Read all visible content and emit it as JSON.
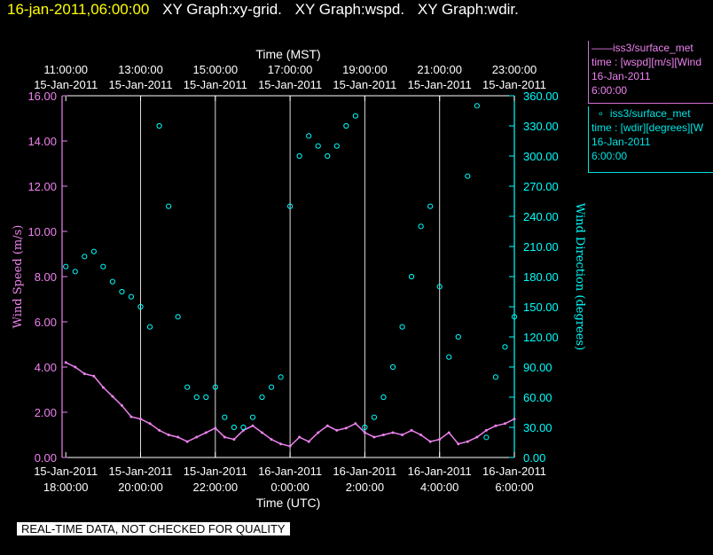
{
  "header": {
    "date": "16-jan-2011,06:00:00",
    "graphs": [
      "XY Graph:xy-grid.",
      "XY Graph:wspd.",
      "XY Graph:wdir."
    ]
  },
  "legend": {
    "wspd": {
      "name": "iss3/surface_met",
      "line1": "time : [wspd][m/s][Wind",
      "line2": "16-Jan-2011",
      "line3": "6:00:00",
      "color": "#ee82ee"
    },
    "wdir": {
      "name": "iss3/surface_met",
      "line1": "time : [wdir][degrees][W",
      "line2": "16-Jan-2011",
      "line3": "6:00:00",
      "color": "#00ffff"
    }
  },
  "quality_note": "REAL-TIME DATA, NOT CHECKED FOR QUALITY",
  "chart_data": {
    "type": "scatter",
    "top_axis": {
      "label": "Time (MST)",
      "ticks": [
        {
          "time": "11:00:00",
          "date": "15-Jan-2011"
        },
        {
          "time": "13:00:00",
          "date": "15-Jan-2011"
        },
        {
          "time": "15:00:00",
          "date": "15-Jan-2011"
        },
        {
          "time": "17:00:00",
          "date": "15-Jan-2011"
        },
        {
          "time": "19:00:00",
          "date": "15-Jan-2011"
        },
        {
          "time": "21:00:00",
          "date": "15-Jan-2011"
        },
        {
          "time": "23:00:00",
          "date": "15-Jan-2011"
        }
      ]
    },
    "bottom_axis": {
      "label": "Time (UTC)",
      "ticks": [
        {
          "date": "15-Jan-2011",
          "time": "18:00:00"
        },
        {
          "date": "15-Jan-2011",
          "time": "20:00:00"
        },
        {
          "date": "15-Jan-2011",
          "time": "22:00:00"
        },
        {
          "date": "16-Jan-2011",
          "time": "0:00:00"
        },
        {
          "date": "16-Jan-2011",
          "time": "2:00:00"
        },
        {
          "date": "16-Jan-2011",
          "time": "4:00:00"
        },
        {
          "date": "16-Jan-2011",
          "time": "6:00:00"
        }
      ]
    },
    "xlim_hours_utc": [
      17.9,
      30.0
    ],
    "tick_hours_utc": [
      18,
      20,
      22,
      24,
      26,
      28,
      30
    ],
    "left_axis": {
      "label": "Wind Speed (m/s)",
      "ylim": [
        0,
        16
      ],
      "ticks": [
        "0.00",
        "2.00",
        "4.00",
        "6.00",
        "8.00",
        "10.00",
        "12.00",
        "14.00",
        "16.00"
      ],
      "color": "#ee82ee"
    },
    "right_axis": {
      "label": "Wind Direction (degrees)",
      "ylim": [
        0,
        360
      ],
      "ticks": [
        "0.00",
        "30.00",
        "60.00",
        "90.00",
        "120.00",
        "150.00",
        "180.00",
        "210.00",
        "240.00",
        "270.00",
        "300.00",
        "330.00",
        "360.00"
      ],
      "color": "#00ffff"
    },
    "grid": "vertical",
    "series": [
      {
        "name": "iss3/surface_met",
        "axis": "left",
        "color": "#ee82ee",
        "style": "line",
        "x_hours_utc": [
          18.0,
          18.25,
          18.5,
          18.75,
          19.0,
          19.25,
          19.5,
          19.75,
          20.0,
          20.25,
          20.5,
          20.75,
          21.0,
          21.25,
          21.5,
          21.75,
          22.0,
          22.25,
          22.5,
          22.75,
          23.0,
          23.25,
          23.5,
          23.75,
          24.0,
          24.25,
          24.5,
          24.75,
          25.0,
          25.25,
          25.5,
          25.75,
          26.0,
          26.25,
          26.5,
          26.75,
          27.0,
          27.25,
          27.5,
          27.75,
          28.0,
          28.25,
          28.5,
          28.75,
          29.0,
          29.25,
          29.5,
          29.75,
          30.0
        ],
        "values": [
          4.2,
          4.0,
          3.7,
          3.6,
          3.1,
          2.7,
          2.3,
          1.8,
          1.7,
          1.5,
          1.2,
          1.0,
          0.9,
          0.7,
          0.9,
          1.1,
          1.3,
          0.9,
          0.8,
          1.2,
          1.4,
          1.1,
          0.8,
          0.6,
          0.5,
          0.9,
          0.7,
          1.1,
          1.4,
          1.2,
          1.3,
          1.5,
          1.1,
          0.9,
          1.0,
          1.1,
          1.0,
          1.2,
          1.0,
          0.7,
          0.8,
          1.1,
          0.6,
          0.7,
          0.9,
          1.2,
          1.4,
          1.5,
          1.7
        ]
      },
      {
        "name": "iss3/surface_met",
        "axis": "right",
        "color": "#00ffff",
        "style": "markers",
        "x_hours_utc": [
          18.0,
          18.25,
          18.5,
          18.75,
          19.0,
          19.25,
          19.5,
          19.75,
          20.0,
          20.25,
          20.5,
          20.75,
          21.0,
          21.25,
          21.5,
          21.75,
          22.0,
          22.25,
          22.5,
          22.75,
          23.0,
          23.25,
          23.5,
          23.75,
          24.0,
          24.25,
          24.5,
          24.75,
          25.0,
          25.25,
          25.5,
          25.75,
          26.0,
          26.25,
          26.5,
          26.75,
          27.0,
          27.25,
          27.5,
          27.75,
          28.0,
          28.25,
          28.5,
          28.75,
          29.0,
          29.25,
          29.5,
          29.75,
          30.0
        ],
        "values": [
          190,
          185,
          200,
          205,
          190,
          175,
          165,
          160,
          150,
          130,
          330,
          250,
          140,
          70,
          60,
          60,
          70,
          40,
          30,
          30,
          40,
          60,
          70,
          80,
          250,
          300,
          320,
          310,
          300,
          310,
          330,
          340,
          30,
          40,
          60,
          90,
          130,
          180,
          230,
          250,
          170,
          100,
          120,
          280,
          350,
          20,
          80,
          110,
          140
        ]
      }
    ]
  }
}
